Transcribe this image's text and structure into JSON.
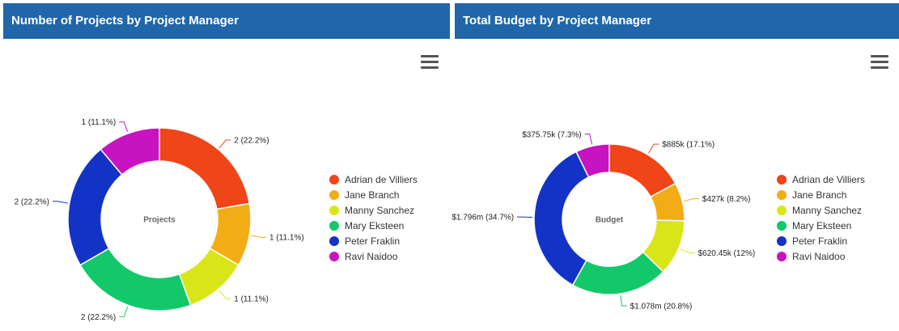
{
  "panels": [
    {
      "title": "Number of Projects by Project Manager"
    },
    {
      "title": "Total Budget by Project Manager"
    }
  ],
  "menu_icon": "hamburger-menu-icon",
  "colors": [
    "#f04419",
    "#f2ac16",
    "#d8e619",
    "#13c86a",
    "#1333c7",
    "#c713c0"
  ],
  "chart_data": [
    {
      "type": "pie",
      "center_label": "Projects",
      "categories": [
        "Adrian de Villiers",
        "Jane Branch",
        "Manny Sanchez",
        "Mary Eksteen",
        "Peter Fraklin",
        "Ravi Naidoo"
      ],
      "values": [
        2,
        1,
        1,
        2,
        2,
        1
      ],
      "labels": [
        "2 (22.2%)",
        "1 (11.1%)",
        "1 (11.1%)",
        "2 (22.2%)",
        "2 (22.2%)",
        "1 (11.1%)"
      ],
      "legend": "right"
    },
    {
      "type": "pie",
      "center_label": "Budget",
      "categories": [
        "Adrian de Villiers",
        "Jane Branch",
        "Manny Sanchez",
        "Mary Eksteen",
        "Peter Fraklin",
        "Ravi Naidoo"
      ],
      "values": [
        885000,
        427000,
        620450,
        1078000,
        1796000,
        375750
      ],
      "labels": [
        "$885k (17.1%)",
        "$427k (8.2%)",
        "$620.45k (12%)",
        "$1.078m (20.8%)",
        "$1.796m (34.7%)",
        "$375.75k (7.3%)"
      ],
      "legend": "right"
    }
  ]
}
